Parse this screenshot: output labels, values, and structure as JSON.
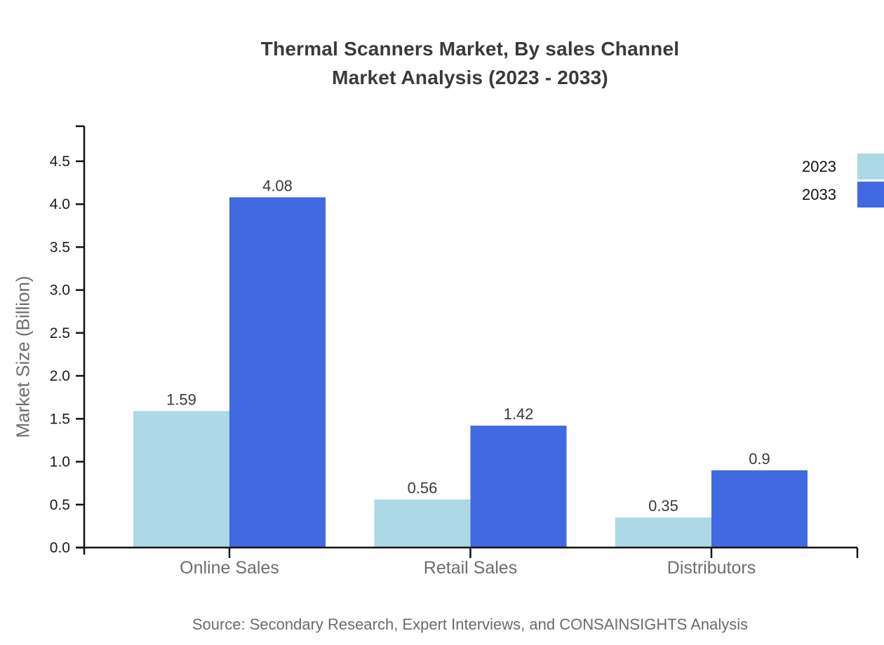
{
  "title": {
    "line1": "Thermal Scanners Market, By sales Channel",
    "line2": "Market Analysis (2023 - 2033)"
  },
  "source_note": "Source: Secondary Research, Expert Interviews, and CONSAINSIGHTS Analysis",
  "legend": [
    {
      "label": "2023",
      "color": "#ADD8E6"
    },
    {
      "label": "2033",
      "color": "#4169E1"
    }
  ],
  "colors": {
    "series_2023": "#ADD8E6",
    "series_2033": "#4169E1",
    "axis": "#111111",
    "tick_label": "#1a1a1a",
    "category_label": "#6e6e6e",
    "value_label": "#3a3a3a",
    "title": "#3a3a3a",
    "source": "#6b6b6b",
    "background": "#ffffff"
  },
  "chart_data": {
    "type": "bar",
    "title": "Thermal Scanners Market, By sales Channel Market Analysis (2023 - 2033)",
    "categories": [
      "Online Sales",
      "Retail Sales",
      "Distributors"
    ],
    "series": [
      {
        "name": "2023",
        "color": "#ADD8E6",
        "values": [
          1.59,
          0.56,
          0.35
        ],
        "labels": [
          "1.59",
          "0.56",
          "0.35"
        ]
      },
      {
        "name": "2033",
        "color": "#4169E1",
        "values": [
          4.08,
          1.42,
          0.9
        ],
        "labels": [
          "4.08",
          "1.42",
          "0.9"
        ]
      }
    ],
    "xlabel": "",
    "ylabel": "Market Size (Billion)",
    "ylim": [
      0,
      4.9
    ],
    "yticks": [
      "0.0",
      "0.5",
      "1.0",
      "1.5",
      "2.0",
      "2.5",
      "3.0",
      "3.5",
      "4.0",
      "4.5"
    ],
    "grid": false,
    "legend_position": "top-right",
    "value_labels_shown": true
  }
}
